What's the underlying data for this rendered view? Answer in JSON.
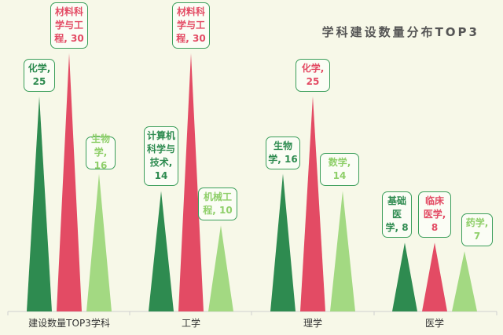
{
  "chart_data": {
    "type": "bar",
    "title": "学科建设数量分布TOP3",
    "xlabel": "",
    "ylabel": "",
    "ylim": [
      0,
      30
    ],
    "legend": "none",
    "grid": false,
    "colors": [
      "#2e8b50",
      "#e34b64",
      "#a3d982"
    ],
    "categories": [
      "建设数量TOP3学科",
      "工学",
      "理学",
      "医学"
    ],
    "groups": [
      {
        "category": "建设数量TOP3学科",
        "bars": [
          {
            "label": "化学",
            "value": 25,
            "text": "化学, 25"
          },
          {
            "label": "材料科学与工程",
            "value": 30,
            "text": "材料科学与工程, 30"
          },
          {
            "label": "生物学",
            "value": 16,
            "text": "生物学, 16"
          }
        ]
      },
      {
        "category": "工学",
        "bars": [
          {
            "label": "计算机科学与技术",
            "value": 14,
            "text": "计算机科学与技术, 14"
          },
          {
            "label": "材料科学与工程",
            "value": 30,
            "text": "材料科学与工程, 30"
          },
          {
            "label": "机械工程",
            "value": 10,
            "text": "机械工程, 10"
          }
        ]
      },
      {
        "category": "理学",
        "bars": [
          {
            "label": "生物学",
            "value": 16,
            "text": "生物学, 16"
          },
          {
            "label": "化学",
            "value": 25,
            "text": "化学, 25"
          },
          {
            "label": "数学",
            "value": 14,
            "text": "数学, 14"
          }
        ]
      },
      {
        "category": "医学",
        "bars": [
          {
            "label": "基础医学",
            "value": 8,
            "text": "基础医学, 8"
          },
          {
            "label": "临床医学",
            "value": 8,
            "text": "临床医学, 8"
          },
          {
            "label": "药学",
            "value": 7,
            "text": "药学, 7"
          }
        ]
      }
    ]
  }
}
